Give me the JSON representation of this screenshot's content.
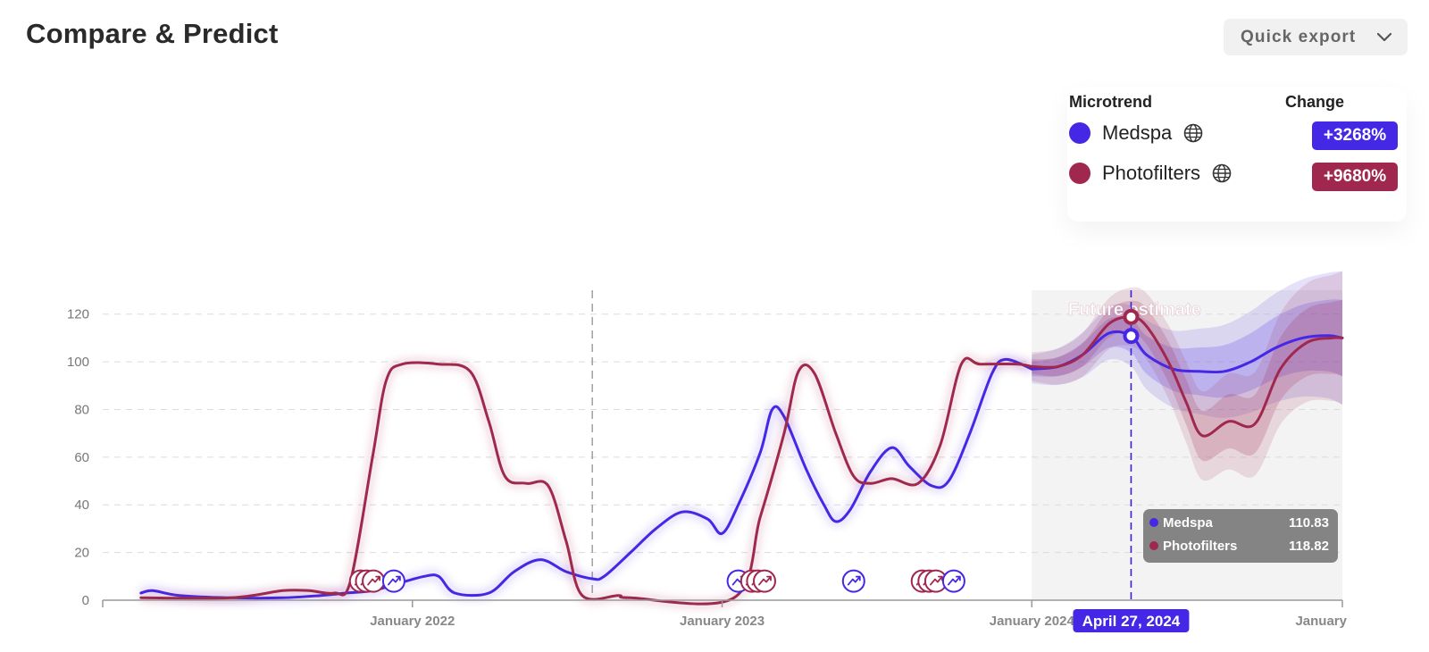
{
  "page": {
    "title": "Compare & Predict"
  },
  "toolbar": {
    "export_label": "Quick export"
  },
  "legend": {
    "microtrend_header": "Microtrend",
    "change_header": "Change",
    "items": [
      {
        "name": "Medspa",
        "change": "+3268%",
        "color": "#4527e6",
        "icon": "globe-icon"
      },
      {
        "name": "Photofilters",
        "change": "+9680%",
        "color": "#a0284f",
        "icon": "globe-icon"
      }
    ]
  },
  "chart_data": {
    "type": "line",
    "title": "",
    "xlabel": "",
    "ylabel": "",
    "ylim": [
      0,
      130
    ],
    "yticks": [
      0,
      20,
      40,
      60,
      80,
      100,
      120
    ],
    "xlim": [
      "2021-01-01",
      "2025-01-01"
    ],
    "xticks": [
      {
        "date": "2022-01-01",
        "label": "January 2022"
      },
      {
        "date": "2023-01-01",
        "label": "January 2023"
      },
      {
        "date": "2024-01-01",
        "label": "January 2024"
      },
      {
        "date": "2025-01-01",
        "label": "January"
      }
    ],
    "grid": true,
    "reference_line_date": "2022-08-01",
    "future_start_date": "2024-01-01",
    "future_label": "Future estimate",
    "hover": {
      "date": "2024-04-27",
      "label": "April 27, 2024",
      "values": [
        {
          "name": "Medspa",
          "value": "110.83"
        },
        {
          "name": "Photofilters",
          "value": "118.82"
        }
      ]
    },
    "series": [
      {
        "name": "Medspa",
        "color": "#4527e6",
        "points": [
          [
            "2021-02-15",
            3
          ],
          [
            "2021-03-01",
            4
          ],
          [
            "2021-04-01",
            2
          ],
          [
            "2021-06-01",
            1
          ],
          [
            "2021-08-01",
            1
          ],
          [
            "2021-09-15",
            2
          ],
          [
            "2021-10-15",
            3
          ],
          [
            "2021-11-15",
            4
          ],
          [
            "2021-12-15",
            7
          ],
          [
            "2022-01-15",
            10
          ],
          [
            "2022-02-01",
            10
          ],
          [
            "2022-02-20",
            3
          ],
          [
            "2022-04-01",
            3
          ],
          [
            "2022-05-01",
            12
          ],
          [
            "2022-06-01",
            17
          ],
          [
            "2022-07-01",
            12
          ],
          [
            "2022-08-01",
            9
          ],
          [
            "2022-08-15",
            10
          ],
          [
            "2022-09-15",
            20
          ],
          [
            "2022-10-15",
            30
          ],
          [
            "2022-11-15",
            37
          ],
          [
            "2022-12-15",
            34
          ],
          [
            "2023-01-01",
            28
          ],
          [
            "2023-01-20",
            40
          ],
          [
            "2023-02-15",
            62
          ],
          [
            "2023-03-01",
            80
          ],
          [
            "2023-03-15",
            77
          ],
          [
            "2023-04-10",
            55
          ],
          [
            "2023-05-01",
            40
          ],
          [
            "2023-05-15",
            33
          ],
          [
            "2023-06-01",
            38
          ],
          [
            "2023-06-25",
            54
          ],
          [
            "2023-07-20",
            64
          ],
          [
            "2023-08-10",
            56
          ],
          [
            "2023-09-05",
            48
          ],
          [
            "2023-09-25",
            50
          ],
          [
            "2023-10-20",
            70
          ],
          [
            "2023-11-15",
            95
          ],
          [
            "2023-12-01",
            101
          ],
          [
            "2024-01-01",
            97
          ]
        ],
        "forecast": [
          [
            "2024-01-01",
            97
          ],
          [
            "2024-02-01",
            98
          ],
          [
            "2024-03-01",
            103
          ],
          [
            "2024-04-01",
            112
          ],
          [
            "2024-04-27",
            110.83
          ],
          [
            "2024-05-15",
            103
          ],
          [
            "2024-06-15",
            97
          ],
          [
            "2024-07-15",
            96
          ],
          [
            "2024-08-15",
            96
          ],
          [
            "2024-09-15",
            100
          ],
          [
            "2024-10-15",
            106
          ],
          [
            "2024-11-15",
            110
          ],
          [
            "2024-12-15",
            111
          ],
          [
            "2025-01-01",
            110
          ]
        ]
      },
      {
        "name": "Photofilters",
        "color": "#a0284f",
        "points": [
          [
            "2021-02-15",
            1
          ],
          [
            "2021-06-01",
            1
          ],
          [
            "2021-08-01",
            4
          ],
          [
            "2021-09-01",
            4
          ],
          [
            "2021-10-01",
            3
          ],
          [
            "2021-10-20",
            8
          ],
          [
            "2021-11-15",
            60
          ],
          [
            "2021-12-01",
            92
          ],
          [
            "2021-12-20",
            99
          ],
          [
            "2022-02-01",
            99
          ],
          [
            "2022-03-10",
            96
          ],
          [
            "2022-04-01",
            75
          ],
          [
            "2022-04-20",
            52
          ],
          [
            "2022-05-15",
            49
          ],
          [
            "2022-06-10",
            48
          ],
          [
            "2022-07-01",
            25
          ],
          [
            "2022-07-20",
            2
          ],
          [
            "2022-09-01",
            2
          ],
          [
            "2022-09-15",
            1
          ],
          [
            "2023-01-15",
            1
          ],
          [
            "2023-02-15",
            35
          ],
          [
            "2023-03-15",
            70
          ],
          [
            "2023-04-01",
            96
          ],
          [
            "2023-04-20",
            95
          ],
          [
            "2023-05-15",
            70
          ],
          [
            "2023-06-05",
            52
          ],
          [
            "2023-06-25",
            49
          ],
          [
            "2023-07-20",
            51
          ],
          [
            "2023-08-20",
            49
          ],
          [
            "2023-09-15",
            65
          ],
          [
            "2023-10-10",
            99
          ],
          [
            "2023-11-01",
            99
          ],
          [
            "2023-12-15",
            99
          ],
          [
            "2024-01-01",
            98
          ]
        ],
        "forecast": [
          [
            "2024-01-01",
            98
          ],
          [
            "2024-02-01",
            98
          ],
          [
            "2024-03-01",
            103
          ],
          [
            "2024-04-01",
            116
          ],
          [
            "2024-04-27",
            118.82
          ],
          [
            "2024-05-15",
            115
          ],
          [
            "2024-06-10",
            100
          ],
          [
            "2024-07-01",
            83
          ],
          [
            "2024-07-20",
            69
          ],
          [
            "2024-08-20",
            75
          ],
          [
            "2024-09-20",
            74
          ],
          [
            "2024-10-20",
            97
          ],
          [
            "2024-11-20",
            108
          ],
          [
            "2024-12-20",
            110
          ],
          [
            "2025-01-01",
            110
          ]
        ]
      }
    ],
    "events": [
      {
        "series": "Photofilters",
        "date": "2021-11-01",
        "value": 8
      },
      {
        "series": "Photofilters",
        "date": "2021-11-08",
        "value": 8
      },
      {
        "series": "Photofilters",
        "date": "2021-11-16",
        "value": 8
      },
      {
        "series": "Medspa",
        "date": "2021-12-10",
        "value": 8
      },
      {
        "series": "Medspa",
        "date": "2023-01-20",
        "value": 8
      },
      {
        "series": "Photofilters",
        "date": "2023-02-05",
        "value": 8
      },
      {
        "series": "Photofilters",
        "date": "2023-02-12",
        "value": 8
      },
      {
        "series": "Photofilters",
        "date": "2023-02-20",
        "value": 8
      },
      {
        "series": "Medspa",
        "date": "2023-06-05",
        "value": 8
      },
      {
        "series": "Photofilters",
        "date": "2023-08-25",
        "value": 8
      },
      {
        "series": "Photofilters",
        "date": "2023-09-02",
        "value": 8
      },
      {
        "series": "Photofilters",
        "date": "2023-09-10",
        "value": 8
      },
      {
        "series": "Medspa",
        "date": "2023-10-01",
        "value": 8
      }
    ]
  }
}
